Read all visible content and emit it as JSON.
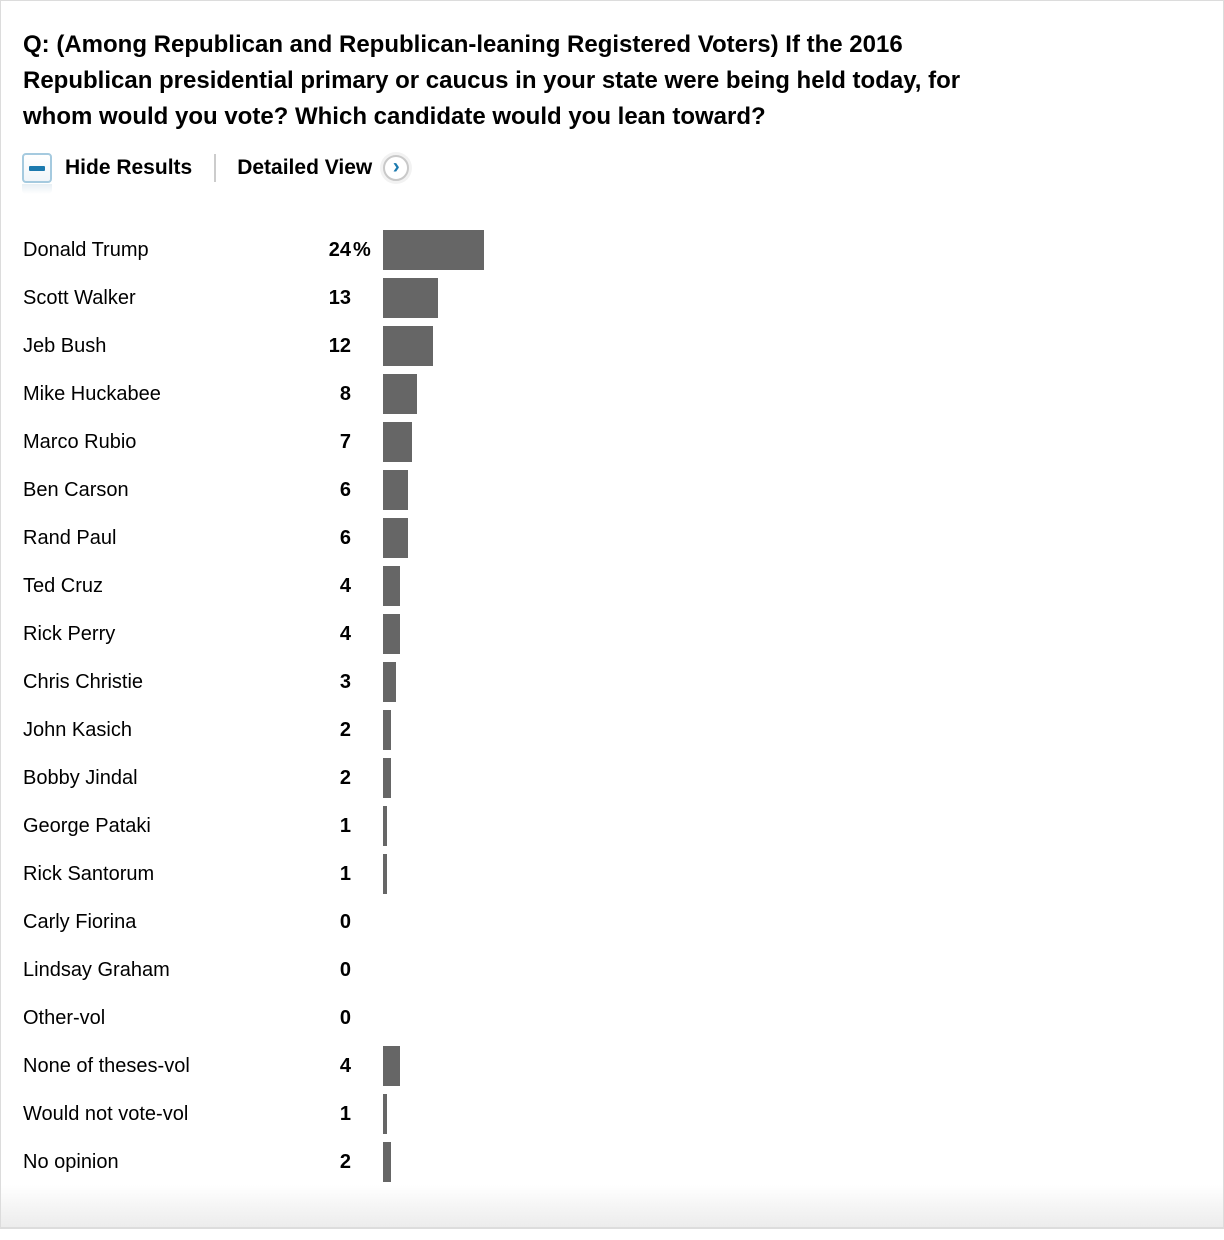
{
  "title": {
    "lines": [
      "Q: (Among Republican and Republican-leaning Registered Voters) If the 2016",
      "Republican presidential primary or caucus in your state were being held today, for",
      "whom would you vote? Which candidate would you lean toward?"
    ],
    "full_text": "Q: (Among Republican and Republican-leaning Registered Voters) If the 2016 Republican presidential primary or caucus in your state were being held today, for whom would you vote? Which candidate would you lean toward?"
  },
  "controls": {
    "hide_results_label": "Hide Results",
    "detailed_view_label": "Detailed View",
    "chevron_glyph": "›"
  },
  "colors": {
    "bar": "#666666",
    "accent_blue": "#1b79ae",
    "icon_border": "#a5cadf",
    "divider": "#cccccc",
    "frame_border": "#dcdcdc"
  },
  "rows": [
    {
      "label": "Donald Trump",
      "value": 24,
      "display": "24",
      "suffix": "%"
    },
    {
      "label": "Scott Walker",
      "value": 13,
      "display": "13",
      "suffix": ""
    },
    {
      "label": "Jeb Bush",
      "value": 12,
      "display": "12",
      "suffix": ""
    },
    {
      "label": "Mike Huckabee",
      "value": 8,
      "display": "8",
      "suffix": ""
    },
    {
      "label": "Marco Rubio",
      "value": 7,
      "display": "7",
      "suffix": ""
    },
    {
      "label": "Ben Carson",
      "value": 6,
      "display": "6",
      "suffix": ""
    },
    {
      "label": "Rand Paul",
      "value": 6,
      "display": "6",
      "suffix": ""
    },
    {
      "label": "Ted Cruz",
      "value": 4,
      "display": "4",
      "suffix": ""
    },
    {
      "label": "Rick Perry",
      "value": 4,
      "display": "4",
      "suffix": ""
    },
    {
      "label": "Chris Christie",
      "value": 3,
      "display": "3",
      "suffix": ""
    },
    {
      "label": "John Kasich",
      "value": 2,
      "display": "2",
      "suffix": ""
    },
    {
      "label": "Bobby Jindal",
      "value": 2,
      "display": "2",
      "suffix": ""
    },
    {
      "label": "George Pataki",
      "value": 1,
      "display": "1",
      "suffix": ""
    },
    {
      "label": "Rick Santorum",
      "value": 1,
      "display": "1",
      "suffix": ""
    },
    {
      "label": "Carly Fiorina",
      "value": 0,
      "display": "0",
      "suffix": ""
    },
    {
      "label": "Lindsay Graham",
      "value": 0,
      "display": "0",
      "suffix": ""
    },
    {
      "label": "Other-vol",
      "value": 0,
      "display": "0",
      "suffix": ""
    },
    {
      "label": "None of theses-vol",
      "value": 4,
      "display": "4",
      "suffix": ""
    },
    {
      "label": "Would not vote-vol",
      "value": 1,
      "display": "1",
      "suffix": ""
    },
    {
      "label": "No opinion",
      "value": 2,
      "display": "2",
      "suffix": ""
    }
  ],
  "chart_data": {
    "type": "bar",
    "orientation": "horizontal",
    "title": "Q: (Among Republican and Republican-leaning Registered Voters) If the 2016 Republican presidential primary or caucus in your state were being held today, for whom would you vote? Which candidate would you lean toward?",
    "unit": "%",
    "categories": [
      "Donald Trump",
      "Scott Walker",
      "Jeb Bush",
      "Mike Huckabee",
      "Marco Rubio",
      "Ben Carson",
      "Rand Paul",
      "Ted Cruz",
      "Rick Perry",
      "Chris Christie",
      "John Kasich",
      "Bobby Jindal",
      "George Pataki",
      "Rick Santorum",
      "Carly Fiorina",
      "Lindsay Graham",
      "Other-vol",
      "None of theses-vol",
      "Would not vote-vol",
      "No opinion"
    ],
    "values": [
      24,
      13,
      12,
      8,
      7,
      6,
      6,
      4,
      4,
      3,
      2,
      2,
      1,
      1,
      0,
      0,
      0,
      4,
      1,
      2
    ],
    "value_labels": [
      "24%",
      "13",
      "12",
      "8",
      "7",
      "6",
      "6",
      "4",
      "4",
      "3",
      "2",
      "2",
      "1",
      "1",
      "0",
      "0",
      "0",
      "4",
      "1",
      "2"
    ],
    "bar_color": "#666666",
    "grid": false,
    "legend": false,
    "axes_hidden": true
  }
}
